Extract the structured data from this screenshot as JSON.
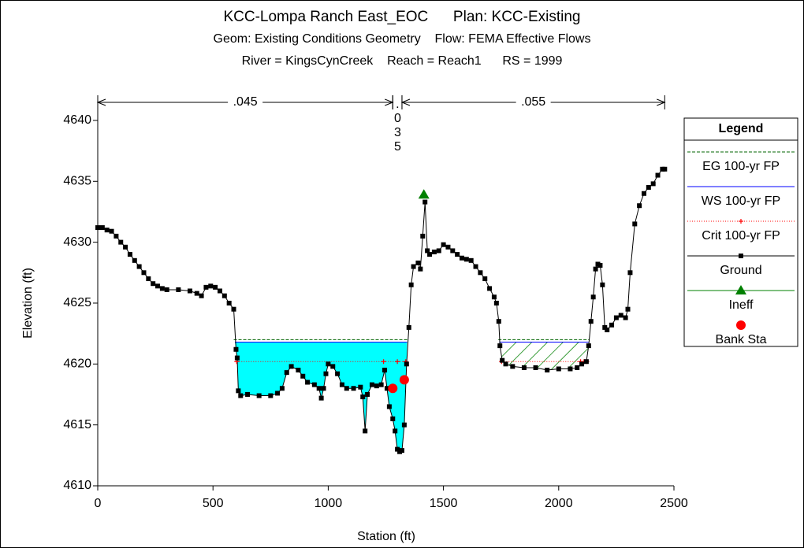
{
  "chart_data": {
    "type": "line",
    "title_lines": [
      "KCC-Lompa Ranch East_EOC      Plan: KCC-Existing",
      "Geom: Existing Conditions Geometry    Flow: FEMA Effective Flows",
      "River = KingsCynCreek    Reach = Reach1      RS = 1999"
    ],
    "xlabel": "Station (ft)",
    "ylabel": "Elevation (ft)",
    "xlim": [
      0,
      2500
    ],
    "ylim": [
      4610,
      4642
    ],
    "xticks": [
      0,
      500,
      1000,
      1500,
      2000,
      2500
    ],
    "yticks": [
      4610,
      4615,
      4620,
      4625,
      4630,
      4635,
      4640
    ],
    "n_regions": [
      {
        "label": ".045",
        "from": 0,
        "to": 1280
      },
      {
        "label": ".035",
        "from": 1280,
        "to": 1320
      },
      {
        "label": ".055",
        "from": 1320,
        "to": 2460
      }
    ],
    "legend": {
      "title": "Legend",
      "position": "right"
    },
    "series": [
      {
        "name": "EG 100-yr FP",
        "color": "#006400",
        "dash": "dashed",
        "marker": "none",
        "x": [
          590,
          1345,
          1500,
          1738,
          2132
        ],
        "values": [
          4622.0,
          4622.0,
          null,
          4622.0,
          4622.0
        ]
      },
      {
        "name": "WS 100-yr FP",
        "color": "#0000ff",
        "dash": "solid",
        "marker": "none",
        "fill": "#00ffff",
        "x": [
          595,
          1342,
          1500,
          1742,
          2130
        ],
        "values": [
          4621.8,
          4621.8,
          null,
          4621.8,
          4621.8
        ]
      },
      {
        "name": "Crit 100-yr FP",
        "color": "#ff0000",
        "dash": "dotted",
        "marker": "plus",
        "x": [
          603,
          1240,
          1300,
          1336,
          1500,
          1752,
          2095,
          2110,
          2122
        ],
        "values": [
          4620.2,
          4620.2,
          4620.2,
          4620.2,
          null,
          4620.2,
          4620.2,
          4620.2,
          4620.2
        ]
      },
      {
        "name": "Ground",
        "color": "#000000",
        "dash": "solid",
        "marker": "square",
        "x": [
          0,
          20,
          40,
          60,
          80,
          100,
          120,
          140,
          160,
          180,
          200,
          220,
          240,
          260,
          280,
          300,
          350,
          400,
          430,
          450,
          470,
          490,
          510,
          530,
          550,
          570,
          590,
          600,
          605,
          610,
          620,
          650,
          700,
          750,
          780,
          800,
          820,
          840,
          870,
          890,
          910,
          940,
          960,
          970,
          980,
          990,
          1000,
          1020,
          1040,
          1060,
          1080,
          1110,
          1140,
          1150,
          1160,
          1170,
          1190,
          1210,
          1230,
          1245,
          1255,
          1265,
          1280,
          1290,
          1300,
          1310,
          1320,
          1330,
          1340,
          1350,
          1360,
          1370,
          1390,
          1400,
          1410,
          1420,
          1430,
          1440,
          1460,
          1480,
          1500,
          1520,
          1540,
          1560,
          1580,
          1600,
          1620,
          1640,
          1660,
          1680,
          1700,
          1720,
          1730,
          1740,
          1745,
          1755,
          1770,
          1800,
          1850,
          1900,
          1950,
          2000,
          2050,
          2080,
          2100,
          2120,
          2130,
          2140,
          2150,
          2160,
          2170,
          2180,
          2190,
          2200,
          2210,
          2230,
          2250,
          2270,
          2290,
          2300,
          2310,
          2330,
          2350,
          2370,
          2390,
          2410,
          2430,
          2450,
          2460
        ],
        "values": [
          4631.2,
          4631.2,
          4631,
          4630.9,
          4630.5,
          4630,
          4629.6,
          4629,
          4628.5,
          4628,
          4627.5,
          4627,
          4626.6,
          4626.4,
          4626.2,
          4626.1,
          4626.1,
          4626,
          4625.8,
          4625.6,
          4626.3,
          4626.4,
          4626.3,
          4626,
          4625.6,
          4625,
          4624.5,
          4621.2,
          4620.5,
          4617.8,
          4617.4,
          4617.5,
          4617.4,
          4617.4,
          4617.6,
          4618,
          4619.3,
          4619.8,
          4619.5,
          4619,
          4618.5,
          4618.3,
          4618,
          4617.2,
          4618,
          4619.2,
          4620,
          4619.8,
          4619.2,
          4618.3,
          4618,
          4618,
          4618.1,
          4617.3,
          4614.5,
          4617.5,
          4618.3,
          4618.2,
          4618.3,
          4619.5,
          4618,
          4616.5,
          4615.5,
          4614.5,
          4613,
          4612.8,
          4612.9,
          4615,
          4620,
          4623,
          4626.5,
          4628,
          4628.3,
          4627.8,
          4630.5,
          4633.3,
          4629.3,
          4629,
          4629.2,
          4629.3,
          4629.8,
          4629.6,
          4629.3,
          4629,
          4628.7,
          4628.6,
          4628.5,
          4628,
          4627.5,
          4627,
          4626.2,
          4625.5,
          4625,
          4623.5,
          4621.5,
          4620.3,
          4620,
          4619.8,
          4619.7,
          4619.7,
          4619.5,
          4619.6,
          4619.6,
          4619.7,
          4620,
          4620.2,
          4621.5,
          4623.5,
          4625.5,
          4627.8,
          4628.2,
          4628.1,
          4626.5,
          4623,
          4622.8,
          4623.2,
          4623.8,
          4624,
          4623.8,
          4624.5,
          4627.5,
          4631.5,
          4633,
          4634,
          4634.5,
          4634.8,
          4635.5,
          4636,
          4636
        ]
      },
      {
        "name": "Ineff",
        "color": "#008000",
        "dash": "solid",
        "marker": "triangle",
        "ineff_range": [
          1740,
          2132
        ],
        "x": [
          1415
        ],
        "values": [
          4633.9
        ]
      },
      {
        "name": "Bank Sta",
        "color": "#ff0000",
        "dash": "none",
        "marker": "circle",
        "x": [
          1280,
          1330
        ],
        "values": [
          4618.0,
          4618.7
        ]
      }
    ]
  }
}
